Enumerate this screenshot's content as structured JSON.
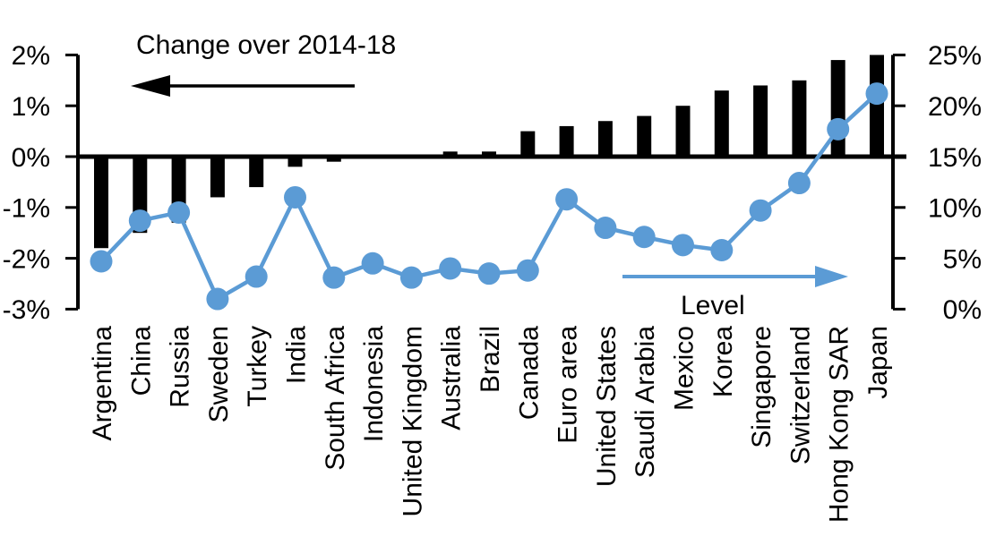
{
  "chart_data": {
    "type": "bar",
    "subtype": "dual-axis-bar-and-line",
    "categories": [
      "Argentina",
      "China",
      "Russia",
      "Sweden",
      "Turkey",
      "India",
      "South Africa",
      "Indonesia",
      "United Kingdom",
      "Australia",
      "Brazil",
      "Canada",
      "Euro area",
      "United States",
      "Saudi Arabia",
      "Mexico",
      "Korea",
      "Singapore",
      "Switzerland",
      "Hong Kong SAR",
      "Japan"
    ],
    "series": [
      {
        "name": "Change over 2014-18",
        "type": "bar",
        "axis": "left",
        "unit": "%",
        "values": [
          -1.8,
          -1.5,
          -1.3,
          -0.8,
          -0.6,
          -0.2,
          -0.1,
          0.0,
          0.0,
          0.1,
          0.1,
          0.5,
          0.6,
          0.7,
          0.8,
          1.0,
          1.3,
          1.4,
          1.5,
          1.9,
          2.0
        ]
      },
      {
        "name": "Level",
        "type": "line",
        "axis": "right",
        "unit": "%",
        "values": [
          4.7,
          8.7,
          9.5,
          1.0,
          3.2,
          11.0,
          3.1,
          4.5,
          3.1,
          4.0,
          3.5,
          3.8,
          10.8,
          8.0,
          7.1,
          6.3,
          5.8,
          9.7,
          12.4,
          17.7,
          21.2
        ]
      }
    ],
    "left_axis": {
      "tick_labels": [
        "2%",
        "1%",
        "0%",
        "-1%",
        "-2%",
        "-3%"
      ],
      "tick_values": [
        2,
        1,
        0,
        -1,
        -2,
        -3
      ],
      "range": [
        -3,
        2
      ]
    },
    "right_axis": {
      "tick_labels": [
        "25%",
        "20%",
        "15%",
        "10%",
        "5%",
        "0%"
      ],
      "tick_values": [
        25,
        20,
        15,
        10,
        5,
        0
      ],
      "range": [
        0,
        25
      ]
    },
    "grid": "off",
    "legend_position": "in-plot annotations with arrows",
    "xlabel": "",
    "ylabel_left": "",
    "ylabel_right": ""
  },
  "annotations": {
    "bars_label": "Change over 2014-18",
    "line_label": "Level"
  },
  "colors": {
    "bar": "#000000",
    "line": "#5B9BD5",
    "axis": "#000000",
    "background": "#FFFFFF"
  }
}
